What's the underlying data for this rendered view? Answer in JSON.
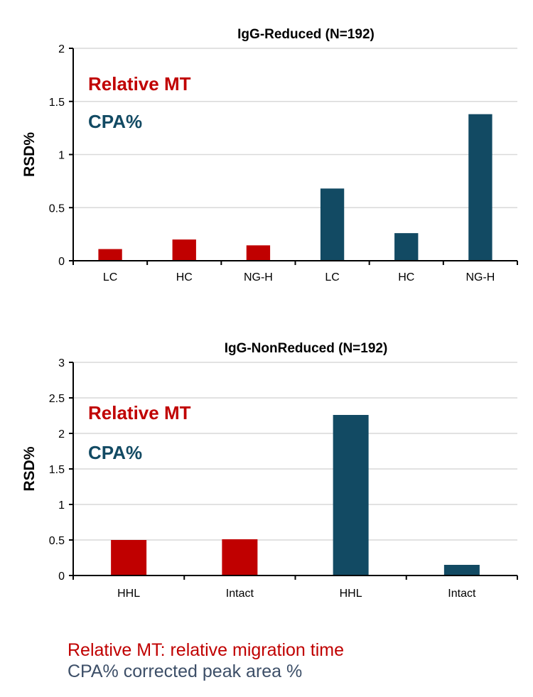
{
  "colors": {
    "relative_mt": "#c00000",
    "cpa": "#124a63",
    "footnote_cpa": "#3d4f68",
    "grid": "#d9d9d9",
    "axis": "#000000"
  },
  "chart_data": [
    {
      "type": "bar",
      "title": "IgG-Reduced (N=192)",
      "ylabel": "RSD%",
      "xlabel": "",
      "ylim": [
        0,
        2
      ],
      "yticks": [
        0,
        0.5,
        1,
        1.5,
        2
      ],
      "ytick_labels": [
        "0",
        "0.5",
        "1",
        "1.5",
        "2"
      ],
      "grid": true,
      "categories": [
        "LC",
        "HC",
        "NG-H",
        "LC",
        "HC",
        "NG-H"
      ],
      "values": [
        0.11,
        0.2,
        0.145,
        0.68,
        0.26,
        1.38
      ],
      "bar_groups": [
        "relative_mt",
        "relative_mt",
        "relative_mt",
        "cpa",
        "cpa",
        "cpa"
      ],
      "annotations": [
        {
          "text": "Relative MT",
          "group": "relative_mt"
        },
        {
          "text": "CPA%",
          "group": "cpa"
        }
      ]
    },
    {
      "type": "bar",
      "title": "IgG-NonReduced (N=192)",
      "ylabel": "RSD%",
      "xlabel": "",
      "ylim": [
        0,
        3
      ],
      "yticks": [
        0,
        0.5,
        1,
        1.5,
        2,
        2.5,
        3
      ],
      "ytick_labels": [
        "0",
        "0.5",
        "1",
        "1.5",
        "2",
        "2.5",
        "3"
      ],
      "grid": true,
      "categories": [
        "HHL",
        "Intact",
        "HHL",
        "Intact"
      ],
      "values": [
        0.5,
        0.51,
        2.26,
        0.15
      ],
      "bar_groups": [
        "relative_mt",
        "relative_mt",
        "cpa",
        "cpa"
      ],
      "annotations": [
        {
          "text": "Relative MT",
          "group": "relative_mt"
        },
        {
          "text": "CPA%",
          "group": "cpa"
        }
      ]
    }
  ],
  "footnotes": [
    {
      "text": "Relative MT: relative migration time",
      "group": "relative_mt"
    },
    {
      "text": "CPA% corrected peak area %",
      "group": "footnote_cpa"
    }
  ]
}
